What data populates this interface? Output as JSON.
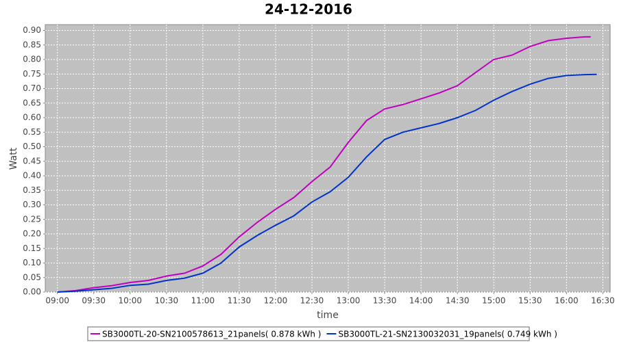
{
  "chart_data": {
    "type": "line",
    "title": "24-12-2016",
    "x_label": "time",
    "y_label": "Watt",
    "xlim": [
      "08:50",
      "16:36"
    ],
    "xticks": [
      "09:00",
      "09:30",
      "10:00",
      "10:30",
      "11:00",
      "11:30",
      "12:00",
      "12:30",
      "13:00",
      "13:30",
      "14:00",
      "14:30",
      "15:00",
      "15:30",
      "16:00",
      "16:30"
    ],
    "ylim": [
      0,
      0.92
    ],
    "yticks": [
      {
        "value": 0,
        "label": "0.00"
      },
      {
        "value": 0.05,
        "label": "0.05"
      },
      {
        "value": 0.1,
        "label": "0.10"
      },
      {
        "value": 0.15,
        "label": "0.15"
      },
      {
        "value": 0.2,
        "label": "0.20"
      },
      {
        "value": 0.25,
        "label": "0.25"
      },
      {
        "value": 0.3,
        "label": "0.30"
      },
      {
        "value": 0.35,
        "label": "0.35"
      },
      {
        "value": 0.4,
        "label": "0.40"
      },
      {
        "value": 0.45,
        "label": "0.45"
      },
      {
        "value": 0.5,
        "label": "0.50"
      },
      {
        "value": 0.55,
        "label": "0.55"
      },
      {
        "value": 0.6,
        "label": "0.60"
      },
      {
        "value": 0.65,
        "label": "0.65"
      },
      {
        "value": 0.7,
        "label": "0.70"
      },
      {
        "value": 0.75,
        "label": "0.75"
      },
      {
        "value": 0.8,
        "label": "0.80"
      },
      {
        "value": 0.85,
        "label": "0.85"
      },
      {
        "value": 0.9,
        "label": "0.90"
      }
    ],
    "grid": true,
    "legend": "bottom",
    "series": [
      {
        "name": "SB3000TL-20-SN2100578613_21panels( 0.878 kWh )",
        "color": "#c000c0",
        "x": [
          "09:00",
          "09:15",
          "09:30",
          "09:45",
          "10:00",
          "10:15",
          "10:30",
          "10:45",
          "11:00",
          "11:15",
          "11:30",
          "11:45",
          "12:00",
          "12:15",
          "12:30",
          "12:45",
          "13:00",
          "13:15",
          "13:30",
          "13:45",
          "14:00",
          "14:15",
          "14:30",
          "14:45",
          "15:00",
          "15:15",
          "15:30",
          "15:45",
          "16:00",
          "16:15",
          "16:20"
        ],
        "values": [
          0.0,
          0.005,
          0.015,
          0.022,
          0.033,
          0.04,
          0.055,
          0.065,
          0.09,
          0.13,
          0.19,
          0.24,
          0.285,
          0.325,
          0.38,
          0.43,
          0.515,
          0.59,
          0.63,
          0.645,
          0.665,
          0.685,
          0.71,
          0.755,
          0.8,
          0.815,
          0.845,
          0.865,
          0.873,
          0.878,
          0.878
        ]
      },
      {
        "name": "SB3000TL-21-SN2130032031_19panels( 0.749 kWh )",
        "color": "#0033cc",
        "x": [
          "09:00",
          "09:15",
          "09:30",
          "09:45",
          "10:00",
          "10:15",
          "10:30",
          "10:45",
          "11:00",
          "11:15",
          "11:30",
          "11:45",
          "12:00",
          "12:15",
          "12:30",
          "12:45",
          "13:00",
          "13:15",
          "13:30",
          "13:45",
          "14:00",
          "14:15",
          "14:30",
          "14:45",
          "15:00",
          "15:15",
          "15:30",
          "15:45",
          "16:00",
          "16:15",
          "16:25"
        ],
        "values": [
          0.0,
          0.003,
          0.008,
          0.013,
          0.023,
          0.027,
          0.04,
          0.048,
          0.065,
          0.1,
          0.155,
          0.195,
          0.23,
          0.262,
          0.31,
          0.345,
          0.395,
          0.465,
          0.525,
          0.55,
          0.565,
          0.58,
          0.6,
          0.625,
          0.66,
          0.69,
          0.715,
          0.735,
          0.745,
          0.748,
          0.749
        ]
      }
    ]
  }
}
